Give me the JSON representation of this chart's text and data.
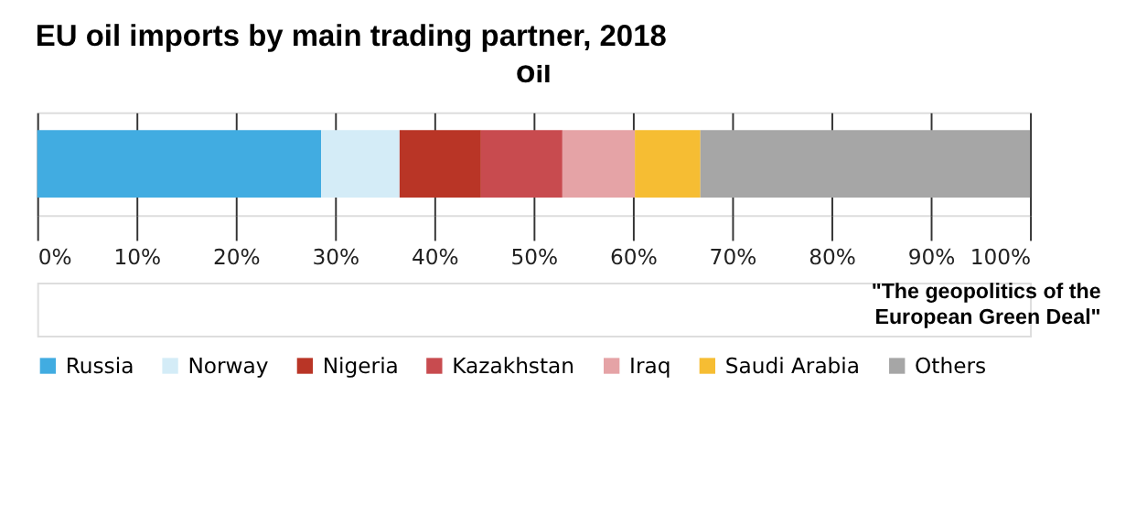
{
  "chart_data": {
    "type": "bar",
    "orientation": "horizontal",
    "stacked": true,
    "title": "EU oil imports by main trading partner, 2018",
    "subtitle": "Oil",
    "categories": [
      null
    ],
    "series": [
      {
        "name": "Russia",
        "color": "#41ace1",
        "values": [
          28.6
        ]
      },
      {
        "name": "Norway",
        "color": "#d4ecf7",
        "values": [
          7.9
        ]
      },
      {
        "name": "Nigeria",
        "color": "#b93526",
        "values": [
          8.2
        ]
      },
      {
        "name": "Kazakhstan",
        "color": "#c84b4f",
        "values": [
          8.2
        ]
      },
      {
        "name": "Iraq",
        "color": "#e5a3a6",
        "values": [
          7.3
        ]
      },
      {
        "name": "Saudi Arabia",
        "color": "#f6bd33",
        "values": [
          6.6
        ]
      },
      {
        "name": "Others",
        "color": "#a6a6a6",
        "values": [
          33.2
        ]
      }
    ],
    "xlim": [
      0,
      100
    ],
    "xticks": [
      {
        "value": 0,
        "label": "0%"
      },
      {
        "value": 10,
        "label": "10%"
      },
      {
        "value": 20,
        "label": "20%"
      },
      {
        "value": 30,
        "label": "30%"
      },
      {
        "value": 40,
        "label": "40%"
      },
      {
        "value": 50,
        "label": "50%"
      },
      {
        "value": 60,
        "label": "60%"
      },
      {
        "value": 70,
        "label": "70%"
      },
      {
        "value": 80,
        "label": "80%"
      },
      {
        "value": 90,
        "label": "90%"
      },
      {
        "value": 100,
        "label": "100%"
      }
    ],
    "grid": "x",
    "legend": "bottom",
    "annotations": [
      "\"The geopolitics of the European Green Deal\""
    ]
  }
}
